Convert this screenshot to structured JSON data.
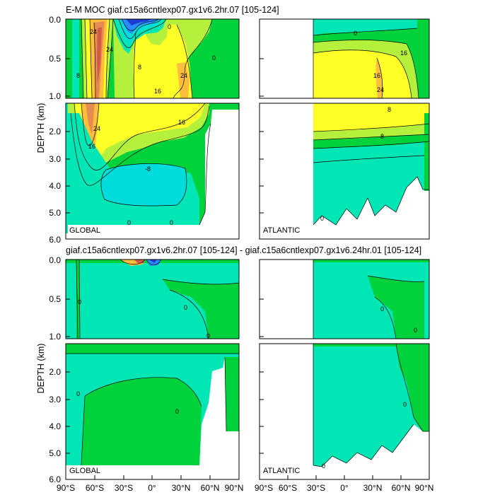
{
  "chart_data": {
    "type": "heatmap",
    "title": "E-M MOC  giaf.c15a6cntlexp07.gx1v6.2hr.07 [105-124]",
    "diff_title": "giaf.c15a6cntlexp07.gx1v6.2hr.07 [105-124] - giaf.c15a6cntlexp07.gx1v6.24hr.01 [105-124]",
    "ylabel": "DEPTH (km)",
    "upper_yticks": [
      "0.0",
      "0.5",
      "1.0"
    ],
    "lower_yticks": [
      "2.0",
      "3.0",
      "4.0",
      "5.0",
      "6.0"
    ],
    "xticks": [
      "90°S",
      "60°S",
      "30°S",
      "0°",
      "30°N",
      "60°N",
      "90°N"
    ],
    "xlim": [
      -90,
      90
    ],
    "upper_depth_range_km": [
      0,
      1
    ],
    "lower_depth_range_km": [
      1,
      6
    ],
    "region_labels": {
      "global": "GLOBAL",
      "atlantic": "ATLANTIC"
    },
    "contour_labels": [
      "0",
      "8",
      "16",
      "24",
      "-8"
    ],
    "colors": {
      "deep": "#1e3cd2",
      "neg": "#2a8cff",
      "lowneg": "#00dcdc",
      "zero": "#00e6b4",
      "pos": "#00d23c",
      "mid": "#b4f03c",
      "high": "#ffff28",
      "higher": "#ffbe3c",
      "peak": "#e68c50",
      "max": "#d25a46",
      "line": "#000000",
      "frame": "#000000"
    }
  }
}
